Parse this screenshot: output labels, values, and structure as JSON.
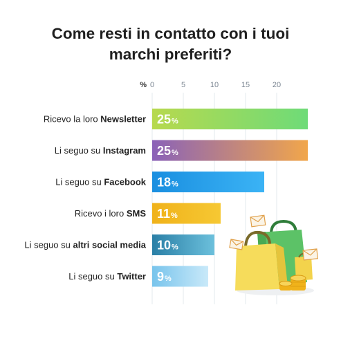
{
  "title_lines": [
    "Come resti in contatto con i tuoi",
    "marchi preferiti?"
  ],
  "chart_data": {
    "type": "bar",
    "orientation": "horizontal",
    "title": "Come resti in contatto con i tuoi marchi preferiti?",
    "unit": "%",
    "xlim": [
      0,
      25
    ],
    "xticks": [
      0,
      5,
      10,
      15,
      20
    ],
    "grid": true,
    "categories": [
      {
        "prefix": "Ricevo la loro ",
        "bold": "Newsletter"
      },
      {
        "prefix": "Li seguo su ",
        "bold": "Instagram"
      },
      {
        "prefix": "Li seguo su ",
        "bold": "Facebook"
      },
      {
        "prefix": "Ricevo i loro ",
        "bold": "SMS"
      },
      {
        "prefix": "Li seguo su ",
        "bold": "altri social media"
      },
      {
        "prefix": "Li seguo su ",
        "bold": "Twitter"
      }
    ],
    "values": [
      25,
      25,
      18,
      11,
      10,
      9
    ],
    "value_suffix": "%",
    "bar_gradients": [
      [
        "#b7d94e",
        "#6edb78"
      ],
      [
        "#8a62b8",
        "#f1a64b"
      ],
      [
        "#1a8fe0",
        "#3bb3f5"
      ],
      [
        "#f0b21a",
        "#f6c833"
      ],
      [
        "#2a7fa6",
        "#6cc0dc"
      ],
      [
        "#78c4ec",
        "#c9e9f9"
      ]
    ]
  },
  "illustration_icons": [
    "shopping-bags-icon",
    "envelope-icon",
    "coin-stack-icon"
  ]
}
